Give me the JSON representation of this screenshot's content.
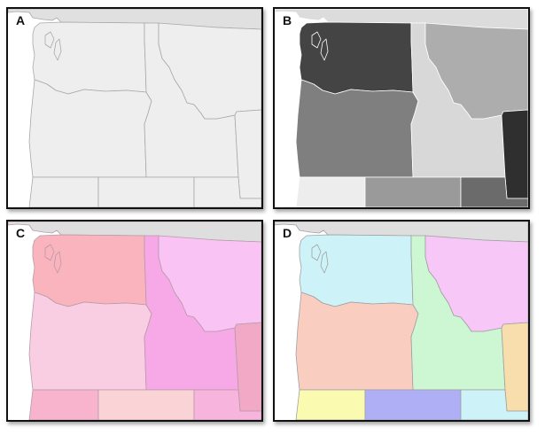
{
  "panels": [
    {
      "id": "A",
      "label": "A",
      "style": "outline",
      "fills": {
        "canada": "#e0e0e0",
        "washington": "#eeeeee",
        "oregon": "#eeeeee",
        "idaho": "#eeeeee",
        "montana": "#eeeeee",
        "wyoming": "#eeeeee",
        "california": "#eeeeee",
        "nevada": "#eeeeee",
        "utah": "#eeeeee",
        "islands": "#eeeeee"
      },
      "stroke": "#a8a8a8"
    },
    {
      "id": "B",
      "label": "B",
      "style": "grayscale",
      "fills": {
        "canada": "#dcdcdc",
        "washington": "#444444",
        "oregon": "#7f7f7f",
        "idaho": "#d8d8d8",
        "montana": "#adadad",
        "wyoming": "#2f2f2f",
        "california": "#ededed",
        "nevada": "#9a9a9a",
        "utah": "#6b6b6b",
        "islands": "#444444"
      },
      "stroke": "#ffffff"
    },
    {
      "id": "C",
      "label": "C",
      "style": "pink-sequential",
      "fills": {
        "canada": "#dedede",
        "washington": "#f9b4bd",
        "oregon": "#f9cde2",
        "idaho": "#f7a8e6",
        "montana": "#f9c4f4",
        "wyoming": "#f2a9c6",
        "california": "#f8b4cc",
        "nevada": "#fad3d6",
        "utah": "#f7b4dd",
        "islands": "#f9b4bd"
      },
      "stroke": "#b89aa8"
    },
    {
      "id": "D",
      "label": "D",
      "style": "qualitative",
      "fills": {
        "canada": "#dedede",
        "washington": "#cdf3f9",
        "oregon": "#f9cdc0",
        "idaho": "#cdf7d3",
        "montana": "#f6c7f7",
        "wyoming": "#f7deac",
        "california": "#fafab0",
        "nevada": "#afaff5",
        "utah": "#cdf3f9",
        "islands": "#cdf3f9"
      },
      "stroke": "#a0a0a0"
    }
  ]
}
